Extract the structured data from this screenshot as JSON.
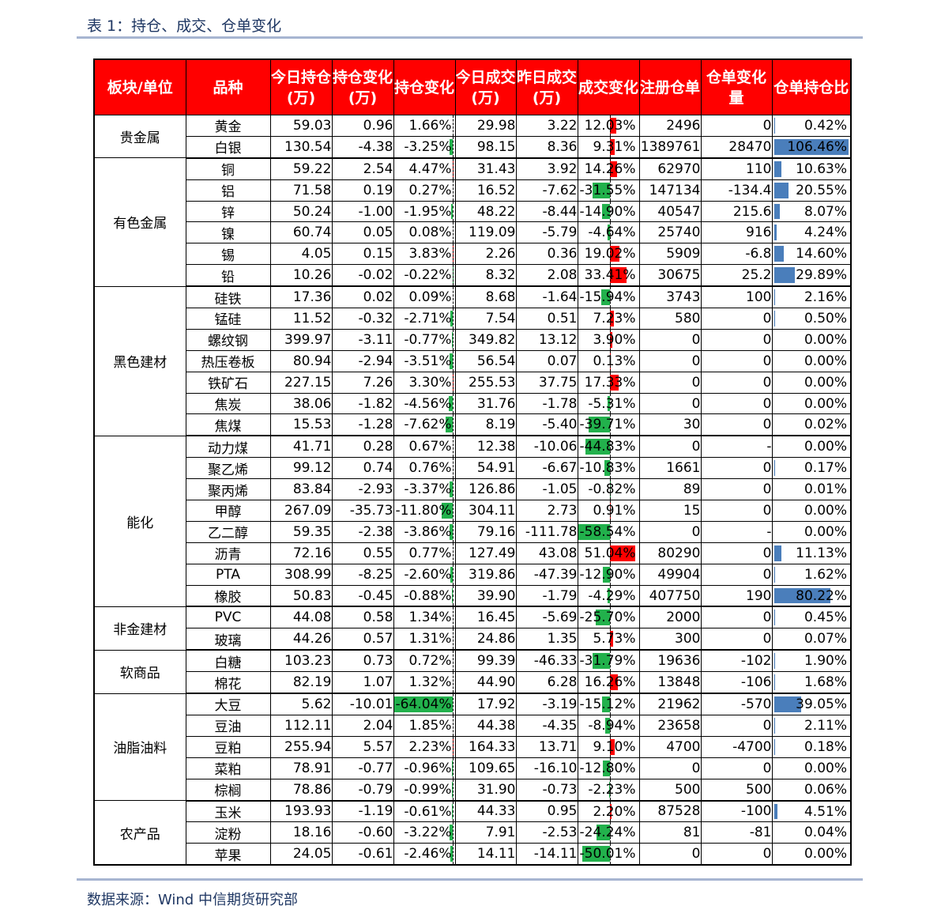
{
  "caption": "表 1：持仓、成交、仓单变化",
  "source": "数据来源：Wind  中信期货研究部",
  "colors": {
    "header_bg": "#ff0000",
    "positive_bar": "#ff0000",
    "negative_bar": "#22b14c",
    "ratio_bar": "#4a7ebb"
  },
  "headers": [
    "板块/单位",
    "品种",
    "今日持仓(万)",
    "持仓变化(万)",
    "持仓变化",
    "今日成交(万)",
    "昨日成交(万)",
    "成交变化",
    "注册仓单",
    "仓单变化量",
    "仓单持仓比"
  ],
  "groups": [
    {
      "sector": "贵金属",
      "rows": [
        [
          "黄金",
          "59.03",
          "0.96",
          "1.66%",
          "29.98",
          "3.22",
          "12.03%",
          "2496",
          "0",
          "0.42%"
        ],
        [
          "白银",
          "130.54",
          "-4.38",
          "-3.25%",
          "98.15",
          "8.36",
          "9.31%",
          "1389761",
          "28470",
          "106.46%"
        ]
      ]
    },
    {
      "sector": "有色金属",
      "rows": [
        [
          "铜",
          "59.22",
          "2.54",
          "4.47%",
          "31.43",
          "3.92",
          "14.26%",
          "62970",
          "110",
          "10.63%"
        ],
        [
          "铝",
          "71.58",
          "0.19",
          "0.27%",
          "16.52",
          "-7.62",
          "-31.55%",
          "147134",
          "-134.4",
          "20.55%"
        ],
        [
          "锌",
          "50.24",
          "-1.00",
          "-1.95%",
          "48.22",
          "-8.44",
          "-14.90%",
          "40547",
          "215.6",
          "8.07%"
        ],
        [
          "镍",
          "60.74",
          "0.05",
          "0.08%",
          "119.09",
          "-5.79",
          "-4.64%",
          "25740",
          "916",
          "4.24%"
        ],
        [
          "锡",
          "4.05",
          "0.15",
          "3.83%",
          "2.26",
          "0.36",
          "19.02%",
          "5909",
          "-6.8",
          "14.60%"
        ],
        [
          "铅",
          "10.26",
          "-0.02",
          "-0.22%",
          "8.32",
          "2.08",
          "33.41%",
          "30675",
          "25.2",
          "29.89%"
        ]
      ]
    },
    {
      "sector": "黑色建材",
      "rows": [
        [
          "硅铁",
          "17.36",
          "0.02",
          "0.09%",
          "8.68",
          "-1.64",
          "-15.94%",
          "3743",
          "100",
          "2.16%"
        ],
        [
          "锰硅",
          "11.52",
          "-0.32",
          "-2.71%",
          "7.54",
          "0.51",
          "7.23%",
          "580",
          "0",
          "0.50%"
        ],
        [
          "螺纹钢",
          "399.97",
          "-3.11",
          "-0.77%",
          "349.82",
          "13.12",
          "3.90%",
          "0",
          "0",
          "0.00%"
        ],
        [
          "热压卷板",
          "80.94",
          "-2.94",
          "-3.51%",
          "56.54",
          "0.07",
          "0.13%",
          "0",
          "0",
          "0.00%"
        ],
        [
          "铁矿石",
          "227.15",
          "7.26",
          "3.30%",
          "255.53",
          "37.75",
          "17.33%",
          "0",
          "0",
          "0.00%"
        ],
        [
          "焦炭",
          "38.06",
          "-1.82",
          "-4.56%",
          "31.76",
          "-1.78",
          "-5.31%",
          "0",
          "0",
          "0.00%"
        ],
        [
          "焦煤",
          "15.53",
          "-1.28",
          "-7.62%",
          "8.19",
          "-5.40",
          "-39.71%",
          "30",
          "0",
          "0.02%"
        ]
      ]
    },
    {
      "sector": "能化",
      "rows": [
        [
          "动力煤",
          "41.71",
          "0.28",
          "0.67%",
          "12.38",
          "-10.06",
          "-44.83%",
          "0",
          "-",
          "0.00%"
        ],
        [
          "聚乙烯",
          "99.12",
          "0.74",
          "0.76%",
          "54.91",
          "-6.67",
          "-10.83%",
          "1661",
          "0",
          "0.17%"
        ],
        [
          "聚丙烯",
          "83.84",
          "-2.93",
          "-3.37%",
          "126.86",
          "-1.05",
          "-0.82%",
          "89",
          "0",
          "0.01%"
        ],
        [
          "甲醇",
          "267.09",
          "-35.73",
          "-11.80%",
          "304.11",
          "2.73",
          "0.91%",
          "15",
          "0",
          "0.00%"
        ],
        [
          "乙二醇",
          "59.35",
          "-2.38",
          "-3.86%",
          "79.16",
          "-111.78",
          "-58.54%",
          "0",
          "-",
          "0.00%"
        ],
        [
          "沥青",
          "72.16",
          "0.55",
          "0.77%",
          "127.49",
          "43.08",
          "51.04%",
          "80290",
          "0",
          "11.13%"
        ],
        [
          "PTA",
          "308.99",
          "-8.25",
          "-2.60%",
          "319.86",
          "-47.39",
          "-12.90%",
          "49904",
          "0",
          "1.62%"
        ],
        [
          "橡胶",
          "50.83",
          "-0.45",
          "-0.88%",
          "39.90",
          "-1.79",
          "-4.29%",
          "407750",
          "190",
          "80.22%"
        ]
      ]
    },
    {
      "sector": "非金建材",
      "rows": [
        [
          "PVC",
          "44.08",
          "0.58",
          "1.34%",
          "16.45",
          "-5.69",
          "-25.70%",
          "2000",
          "0",
          "0.45%"
        ],
        [
          "玻璃",
          "44.26",
          "0.57",
          "1.31%",
          "24.86",
          "1.35",
          "5.73%",
          "300",
          "0",
          "0.07%"
        ]
      ]
    },
    {
      "sector": "软商品",
      "rows": [
        [
          "白糖",
          "103.23",
          "0.73",
          "0.72%",
          "99.39",
          "-46.33",
          "-31.79%",
          "19636",
          "-102",
          "1.90%"
        ],
        [
          "棉花",
          "82.19",
          "1.07",
          "1.32%",
          "44.90",
          "6.28",
          "16.26%",
          "13848",
          "-106",
          "1.68%"
        ]
      ]
    },
    {
      "sector": "油脂油料",
      "rows": [
        [
          "大豆",
          "5.62",
          "-10.01",
          "-64.04%",
          "17.92",
          "-3.19",
          "-15.12%",
          "21962",
          "-570",
          "39.05%"
        ],
        [
          "豆油",
          "112.11",
          "2.04",
          "1.85%",
          "44.38",
          "-4.35",
          "-8.94%",
          "23658",
          "0",
          "2.11%"
        ],
        [
          "豆粕",
          "255.94",
          "5.57",
          "2.23%",
          "164.33",
          "13.71",
          "9.10%",
          "4700",
          "-4700",
          "0.18%"
        ],
        [
          "菜粕",
          "78.91",
          "-0.77",
          "-0.96%",
          "109.65",
          "-16.10",
          "-12.80%",
          "0",
          "0",
          "0.00%"
        ],
        [
          "棕榈",
          "78.86",
          "-0.79",
          "-0.99%",
          "31.90",
          "-0.73",
          "-2.23%",
          "500",
          "500",
          "0.06%"
        ]
      ]
    },
    {
      "sector": "农产品",
      "rows": [
        [
          "玉米",
          "193.93",
          "-1.19",
          "-0.61%",
          "44.33",
          "0.95",
          "2.20%",
          "87528",
          "-100",
          "4.51%"
        ],
        [
          "淀粉",
          "18.16",
          "-0.60",
          "-3.22%",
          "7.91",
          "-2.53",
          "-24.24%",
          "81",
          "-81",
          "0.04%"
        ],
        [
          "苹果",
          "24.05",
          "-0.61",
          "-2.46%",
          "14.11",
          "-14.11",
          "-50.01%",
          "0",
          "0",
          "0.00%"
        ]
      ]
    }
  ]
}
